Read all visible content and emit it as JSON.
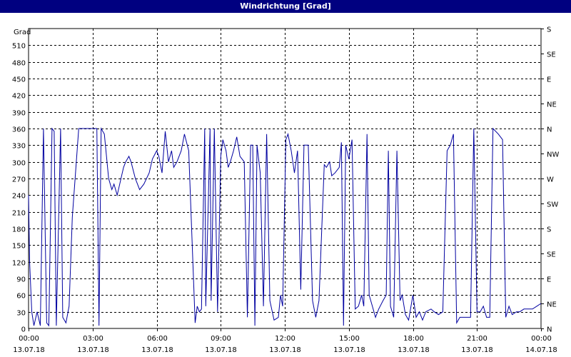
{
  "window": {
    "title": "Windrichtung [Grad]"
  },
  "chart_data": {
    "type": "line",
    "title": "Windrichtung [Grad]",
    "ylabel": "Grad",
    "ylim": [
      0,
      540
    ],
    "yticks": [
      0,
      30,
      60,
      90,
      120,
      150,
      180,
      210,
      240,
      270,
      300,
      330,
      360,
      390,
      420,
      450,
      480,
      510
    ],
    "y2ticks": [
      {
        "value": 0,
        "label": "N"
      },
      {
        "value": 45,
        "label": "NE"
      },
      {
        "value": 90,
        "label": "E"
      },
      {
        "value": 135,
        "label": "SE"
      },
      {
        "value": 180,
        "label": "S"
      },
      {
        "value": 225,
        "label": "SW"
      },
      {
        "value": 270,
        "label": "W"
      },
      {
        "value": 315,
        "label": "NW"
      },
      {
        "value": 360,
        "label": "N"
      },
      {
        "value": 405,
        "label": "NE"
      },
      {
        "value": 450,
        "label": "E"
      },
      {
        "value": 495,
        "label": "SE"
      },
      {
        "value": 540,
        "label": "S"
      }
    ],
    "xlim": [
      0,
      24
    ],
    "xticks": [
      {
        "value": 0,
        "time": "00:00",
        "date": "13.07.18"
      },
      {
        "value": 3,
        "time": "03:00",
        "date": "13.07.18"
      },
      {
        "value": 6,
        "time": "06:00",
        "date": "13.07.18"
      },
      {
        "value": 9,
        "time": "09:00",
        "date": "13.07.18"
      },
      {
        "value": 12,
        "time": "12:00",
        "date": "13.07.18"
      },
      {
        "value": 15,
        "time": "15:00",
        "date": "13.07.18"
      },
      {
        "value": 18,
        "time": "18:00",
        "date": "13.07.18"
      },
      {
        "value": 21,
        "time": "21:00",
        "date": "13.07.18"
      },
      {
        "value": 24,
        "time": "00:00",
        "date": "14.07.18"
      }
    ],
    "grid": true,
    "line_color": "#0000a0",
    "series": [
      {
        "values": [
          [
            0.0,
            240
          ],
          [
            0.05,
            120
          ],
          [
            0.15,
            30
          ],
          [
            0.25,
            5
          ],
          [
            0.4,
            30
          ],
          [
            0.55,
            5
          ],
          [
            0.7,
            360
          ],
          [
            0.85,
            10
          ],
          [
            0.95,
            5
          ],
          [
            1.1,
            360
          ],
          [
            1.2,
            355
          ],
          [
            1.3,
            5
          ],
          [
            1.5,
            360
          ],
          [
            1.6,
            20
          ],
          [
            1.75,
            10
          ],
          [
            1.9,
            40
          ],
          [
            2.05,
            200
          ],
          [
            2.35,
            360
          ],
          [
            3.0,
            360
          ],
          [
            3.2,
            360
          ],
          [
            3.3,
            5
          ],
          [
            3.4,
            360
          ],
          [
            3.55,
            350
          ],
          [
            3.75,
            270
          ],
          [
            3.9,
            250
          ],
          [
            4.0,
            260
          ],
          [
            4.15,
            240
          ],
          [
            4.45,
            290
          ],
          [
            4.55,
            300
          ],
          [
            4.7,
            310
          ],
          [
            4.8,
            300
          ],
          [
            5.0,
            270
          ],
          [
            5.2,
            250
          ],
          [
            5.4,
            260
          ],
          [
            5.65,
            280
          ],
          [
            5.8,
            305
          ],
          [
            6.0,
            320
          ],
          [
            6.1,
            310
          ],
          [
            6.25,
            280
          ],
          [
            6.4,
            355
          ],
          [
            6.55,
            300
          ],
          [
            6.7,
            320
          ],
          [
            6.8,
            290
          ],
          [
            6.95,
            300
          ],
          [
            7.15,
            320
          ],
          [
            7.3,
            350
          ],
          [
            7.5,
            320
          ],
          [
            7.8,
            10
          ],
          [
            7.9,
            40
          ],
          [
            8.0,
            30
          ],
          [
            8.1,
            35
          ],
          [
            8.25,
            360
          ],
          [
            8.3,
            40
          ],
          [
            8.5,
            360
          ],
          [
            8.55,
            50
          ],
          [
            8.7,
            360
          ],
          [
            8.85,
            30
          ],
          [
            9.0,
            310
          ],
          [
            9.1,
            340
          ],
          [
            9.25,
            320
          ],
          [
            9.35,
            290
          ],
          [
            9.45,
            300
          ],
          [
            9.6,
            320
          ],
          [
            9.75,
            345
          ],
          [
            9.9,
            310
          ],
          [
            10.1,
            300
          ],
          [
            10.25,
            20
          ],
          [
            10.4,
            330
          ],
          [
            10.5,
            330
          ],
          [
            10.6,
            5
          ],
          [
            10.7,
            330
          ],
          [
            10.85,
            280
          ],
          [
            11.0,
            40
          ],
          [
            11.15,
            350
          ],
          [
            11.3,
            50
          ],
          [
            11.5,
            15
          ],
          [
            11.7,
            20
          ],
          [
            11.8,
            60
          ],
          [
            11.9,
            40
          ],
          [
            12.05,
            340
          ],
          [
            12.15,
            350
          ],
          [
            12.3,
            320
          ],
          [
            12.45,
            280
          ],
          [
            12.6,
            320
          ],
          [
            12.75,
            70
          ],
          [
            12.9,
            330
          ],
          [
            13.1,
            330
          ],
          [
            13.3,
            50
          ],
          [
            13.45,
            20
          ],
          [
            13.6,
            50
          ],
          [
            13.85,
            295
          ],
          [
            13.95,
            290
          ],
          [
            14.1,
            300
          ],
          [
            14.2,
            275
          ],
          [
            14.35,
            280
          ],
          [
            14.55,
            290
          ],
          [
            14.65,
            335
          ],
          [
            14.75,
            5
          ],
          [
            14.85,
            330
          ],
          [
            15.0,
            305
          ],
          [
            15.15,
            340
          ],
          [
            15.3,
            35
          ],
          [
            15.45,
            40
          ],
          [
            15.6,
            60
          ],
          [
            15.7,
            40
          ],
          [
            15.85,
            350
          ],
          [
            15.95,
            60
          ],
          [
            16.1,
            40
          ],
          [
            16.25,
            20
          ],
          [
            16.4,
            35
          ],
          [
            16.6,
            50
          ],
          [
            16.75,
            60
          ],
          [
            16.85,
            320
          ],
          [
            16.95,
            40
          ],
          [
            17.1,
            20
          ],
          [
            17.25,
            320
          ],
          [
            17.4,
            50
          ],
          [
            17.5,
            60
          ],
          [
            17.65,
            25
          ],
          [
            17.8,
            15
          ],
          [
            18.0,
            60
          ],
          [
            18.15,
            20
          ],
          [
            18.3,
            30
          ],
          [
            18.45,
            15
          ],
          [
            18.6,
            30
          ],
          [
            18.85,
            35
          ],
          [
            19.0,
            30
          ],
          [
            19.2,
            25
          ],
          [
            19.4,
            30
          ],
          [
            19.6,
            320
          ],
          [
            19.75,
            330
          ],
          [
            19.9,
            350
          ],
          [
            20.05,
            10
          ],
          [
            20.2,
            20
          ],
          [
            20.5,
            20
          ],
          [
            20.7,
            20
          ],
          [
            20.85,
            360
          ],
          [
            21.0,
            30
          ],
          [
            21.15,
            30
          ],
          [
            21.3,
            40
          ],
          [
            21.45,
            20
          ],
          [
            21.6,
            20
          ],
          [
            21.75,
            360
          ],
          [
            22.0,
            350
          ],
          [
            22.2,
            340
          ],
          [
            22.35,
            20
          ],
          [
            22.5,
            40
          ],
          [
            22.65,
            25
          ],
          [
            22.85,
            30
          ],
          [
            23.0,
            30
          ],
          [
            23.2,
            35
          ],
          [
            23.4,
            35
          ],
          [
            23.6,
            35
          ],
          [
            23.8,
            40
          ],
          [
            24.0,
            45
          ]
        ]
      }
    ]
  }
}
